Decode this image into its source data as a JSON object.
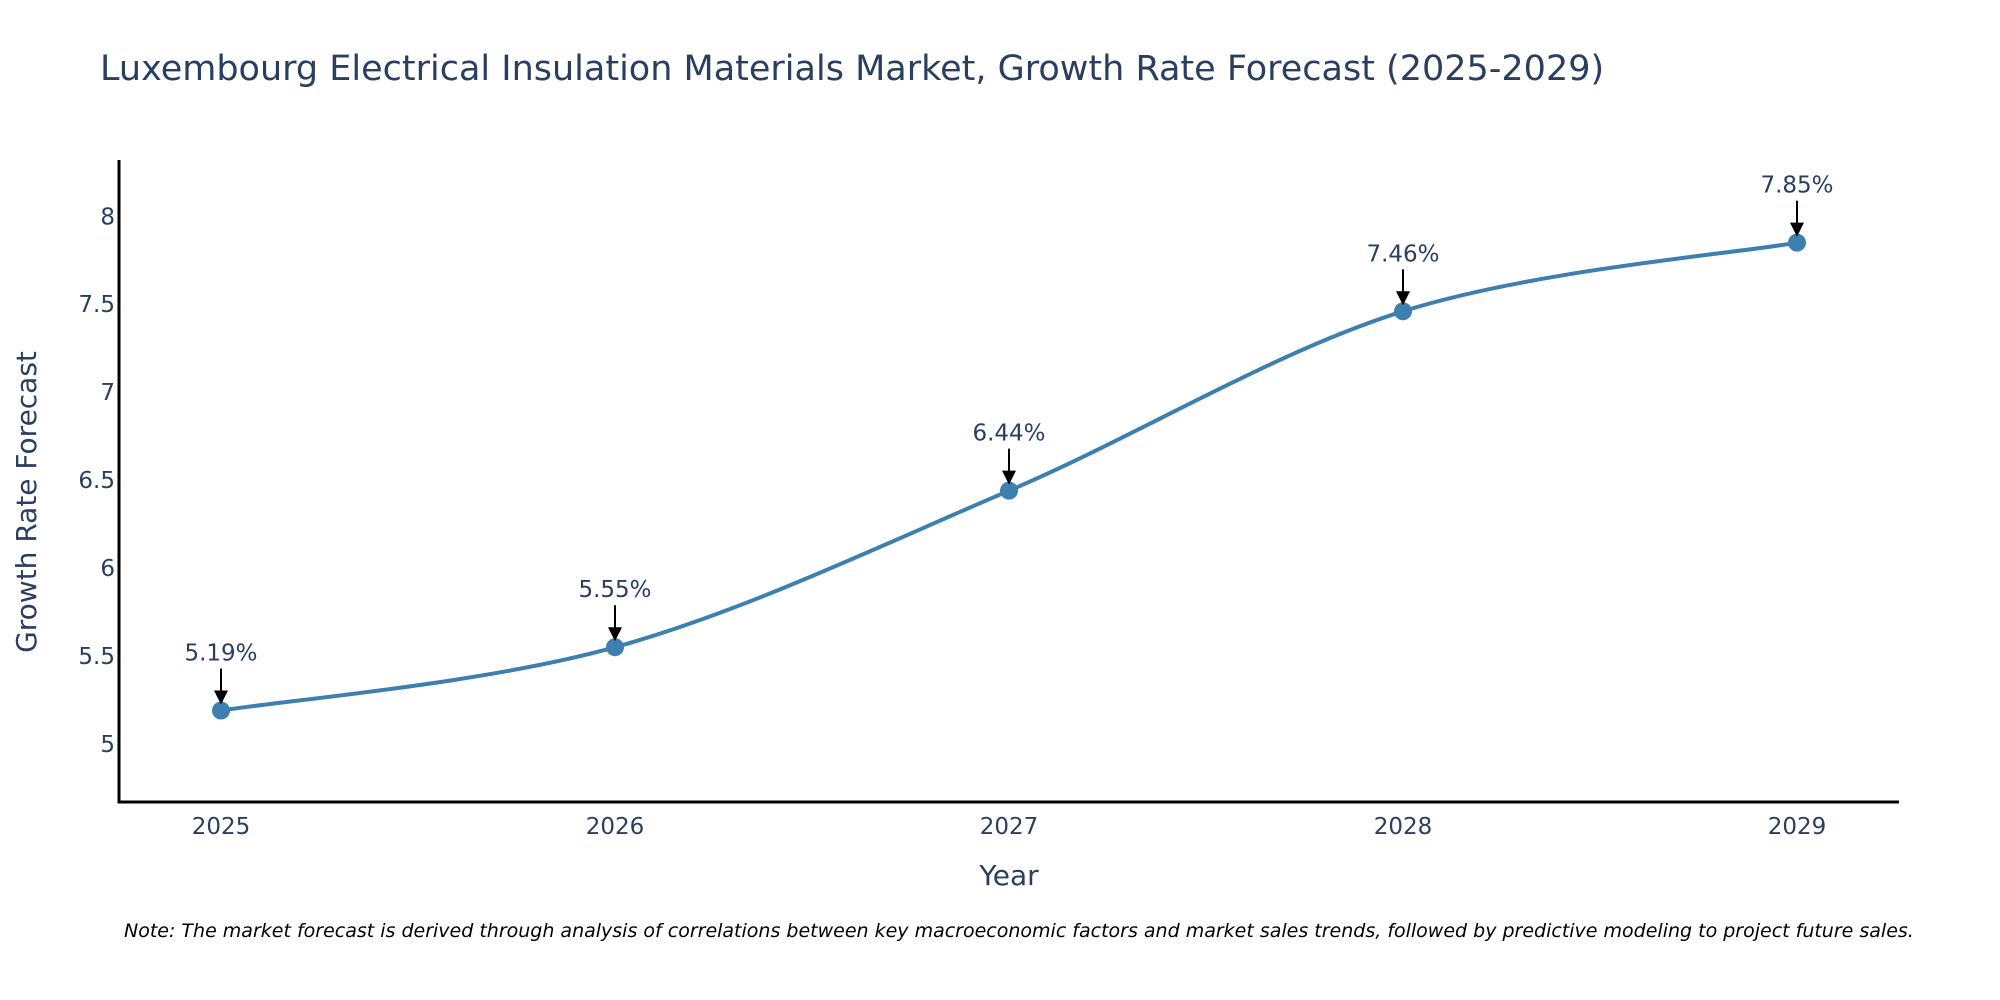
{
  "chart_data": {
    "type": "line",
    "title": "Luxembourg Electrical Insulation Materials Market, Growth Rate Forecast (2025-2029)",
    "xlabel": "Year",
    "ylabel": "Growth Rate Forecast",
    "categories": [
      "2025",
      "2026",
      "2027",
      "2028",
      "2029"
    ],
    "values": [
      5.19,
      5.55,
      6.44,
      7.46,
      7.85
    ],
    "data_labels": [
      "5.19%",
      "5.55%",
      "6.44%",
      "7.46%",
      "7.85%"
    ],
    "y_ticks": [
      5,
      5.5,
      6,
      6.5,
      7,
      7.5,
      8
    ],
    "y_tick_labels": [
      "5",
      "5.5",
      "6",
      "6.5",
      "7",
      "7.5",
      "8"
    ],
    "ylim": [
      4.67,
      8.32
    ],
    "grid": false,
    "line_color": "#3d7fae",
    "marker_color": "#3d7fae",
    "note": "Note: The market forecast is derived through analysis of correlations between key macroeconomic factors and market sales trends, followed by predictive modeling to project future sales."
  }
}
